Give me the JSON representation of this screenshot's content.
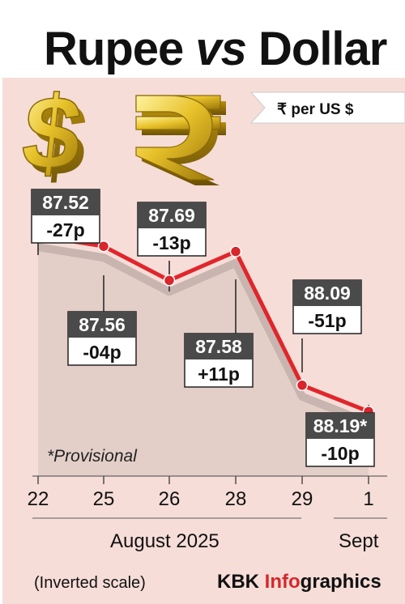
{
  "header": {
    "title_part1": "Rupee ",
    "title_part2": "vs",
    "title_part3": " Dollar",
    "unit_label": "₹ per US $"
  },
  "chart_data": {
    "type": "line",
    "title": "Rupee vs Dollar",
    "unit": "₹ per US $",
    "scale": "inverted",
    "ylim": [
      88.35,
      87.3
    ],
    "x": [
      "22",
      "25",
      "26",
      "28",
      "29",
      "1"
    ],
    "series": [
      {
        "values": [
          87.52,
          87.56,
          87.69,
          87.58,
          88.09,
          88.19
        ],
        "labels": [
          "87.52",
          "87.56",
          "87.69",
          "87.58",
          "88.09",
          "88.19*"
        ],
        "changes": [
          "-27p",
          "-04p",
          "-13p",
          "+11p",
          "-51p",
          "-10p"
        ]
      }
    ],
    "month_groups": [
      {
        "label": "August 2025",
        "from": "22",
        "to": "29"
      },
      {
        "label": "Sept",
        "from": "1",
        "to": "1"
      }
    ],
    "line_color": "#e0262b",
    "marker_color": "#d8262b",
    "box_dark": "#4a4a4a",
    "background": "#f6ddd8",
    "area_shade": "#dcc8c3"
  },
  "notes": {
    "provisional": "*Provisional",
    "inverted": "(Inverted scale)"
  },
  "credit": {
    "part1": "KBK ",
    "part2": "Info",
    "part3": "graphics"
  },
  "icons": [
    "dollar-sign-icon",
    "rupee-sign-icon"
  ]
}
